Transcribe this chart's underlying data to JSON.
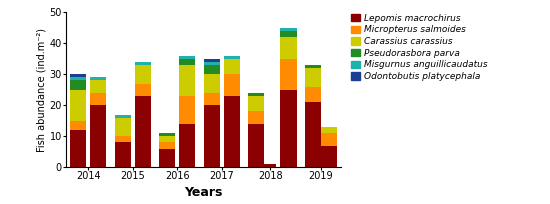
{
  "species": [
    "Lepomis macrochirus",
    "Micropterus salmoides",
    "Carassius carassius",
    "Pseudorasbora parva",
    "Misgurnus anguillicaudatus",
    "Odontobutis platycephala"
  ],
  "colors": [
    "#8B0000",
    "#FF8C00",
    "#CCCC00",
    "#228B22",
    "#20B2AA",
    "#1C3F94"
  ],
  "bar_positions": [
    0,
    1,
    2.2,
    3.2,
    4.4,
    5.4,
    6.6,
    7.6,
    8.8,
    9.4,
    10.4,
    11.6,
    12.4
  ],
  "x_tick_positions": [
    0.5,
    2.7,
    4.9,
    7.1,
    9.5,
    12.0
  ],
  "x_tick_labels": [
    "2014",
    "2015",
    "2016",
    "2017",
    "2018",
    "2019"
  ],
  "data": {
    "Lepomis macrochirus": [
      12,
      20,
      8,
      23,
      6,
      14,
      20,
      23,
      14,
      1,
      25,
      21,
      7
    ],
    "Micropterus salmoides": [
      3,
      4,
      2,
      4,
      2,
      9,
      4,
      7,
      4,
      0,
      10,
      5,
      4
    ],
    "Carassius carassius": [
      10,
      4,
      6,
      6,
      2,
      10,
      6,
      5,
      5,
      0,
      7,
      6,
      2
    ],
    "Pseudorasbora parva": [
      3,
      0,
      0,
      0,
      1,
      2,
      3,
      0,
      1,
      0,
      2,
      1,
      0
    ],
    "Misgurnus anguillicaudatus": [
      1,
      1,
      1,
      1,
      0,
      1,
      1,
      1,
      0,
      0,
      1,
      0,
      0
    ],
    "Odontobutis platycephala": [
      1,
      0,
      0,
      0,
      0,
      0,
      1,
      0,
      0,
      0,
      0,
      0,
      0
    ]
  },
  "ylabel": "Fish abundance (ind.m⁻²)",
  "xlabel": "Years",
  "ylim": [
    0,
    50
  ],
  "yticks": [
    0,
    10,
    20,
    30,
    40,
    50
  ],
  "axis_fontsize": 7,
  "legend_fontsize": 6.5,
  "bar_width": 0.8,
  "figsize": [
    5.5,
    2.04
  ],
  "dpi": 100
}
